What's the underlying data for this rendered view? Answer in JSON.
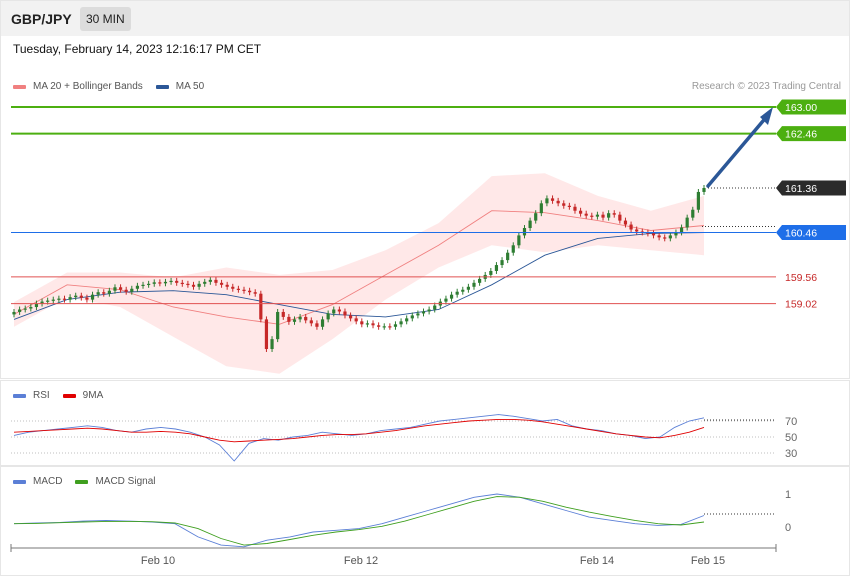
{
  "header": {
    "symbol": "GBP/JPY",
    "timeframe": "30 MIN"
  },
  "datetime": "Tuesday, February 14, 2023 12:16:17 PM CET",
  "credit": "Research © 2023 Trading Central",
  "legends": {
    "price": [
      {
        "name": "MA 20 + Bollinger Bands",
        "color": "#f08080"
      },
      {
        "name": "MA 50",
        "color": "#2b5797"
      }
    ],
    "rsi": [
      {
        "name": "RSI",
        "color": "#5b7fd6"
      },
      {
        "name": "9MA",
        "color": "#e00000"
      }
    ],
    "macd": [
      {
        "name": "MACD",
        "color": "#5b7fd6"
      },
      {
        "name": "MACD Signal",
        "color": "#3f9f1f"
      }
    ]
  },
  "colors": {
    "up": "#2e7d32",
    "down": "#c62828",
    "target": "#4caf10",
    "pivot": "#1e6ee8",
    "support": "#e05050",
    "current": "#2b2b2b",
    "arrow": "#2b5797"
  },
  "chart_data": [
    {
      "type": "candlestick",
      "title": "GBP/JPY",
      "ylim": [
        158.12,
        163.45
      ],
      "x_ticks": [
        "Feb 10",
        "Feb 12",
        "Feb 14",
        "Feb 15"
      ],
      "levels": [
        {
          "value": 163.0,
          "label": "163.00",
          "kind": "target"
        },
        {
          "value": 162.46,
          "label": "162.46",
          "kind": "target"
        },
        {
          "value": 161.36,
          "label": "161.36",
          "kind": "current"
        },
        {
          "value": 160.46,
          "label": "160.46",
          "kind": "pivot"
        },
        {
          "value": 159.56,
          "label": "159.56",
          "kind": "support"
        },
        {
          "value": 159.02,
          "label": "159.02",
          "kind": "support"
        }
      ],
      "close_approx": [
        158.85,
        158.9,
        158.92,
        158.95,
        159.02,
        159.06,
        159.08,
        159.1,
        159.12,
        159.1,
        159.15,
        159.18,
        159.14,
        159.1,
        159.2,
        159.25,
        159.22,
        159.28,
        159.35,
        159.3,
        159.26,
        159.32,
        159.38,
        159.4,
        159.42,
        159.45,
        159.43,
        159.46,
        159.48,
        159.44,
        159.42,
        159.4,
        159.36,
        159.42,
        159.46,
        159.5,
        159.44,
        159.4,
        159.36,
        159.32,
        159.3,
        159.28,
        159.25,
        159.22,
        158.7,
        158.1,
        158.3,
        158.85,
        158.75,
        158.65,
        158.7,
        158.75,
        158.68,
        158.62,
        158.55,
        158.7,
        158.82,
        158.9,
        158.86,
        158.78,
        158.72,
        158.66,
        158.6,
        158.62,
        158.58,
        158.55,
        158.56,
        158.55,
        158.6,
        158.66,
        158.72,
        158.78,
        158.82,
        158.86,
        158.9,
        158.98,
        159.06,
        159.12,
        159.2,
        159.26,
        159.3,
        159.36,
        159.44,
        159.52,
        159.6,
        159.68,
        159.8,
        159.9,
        160.05,
        160.2,
        160.4,
        160.55,
        160.7,
        160.85,
        161.05,
        161.15,
        161.1,
        161.05,
        161.0,
        160.98,
        160.9,
        160.84,
        160.8,
        160.78,
        160.82,
        160.76,
        160.85,
        160.82,
        160.7,
        160.62,
        160.52,
        160.48,
        160.46,
        160.44,
        160.4,
        160.36,
        160.34,
        160.4,
        160.46,
        160.56,
        160.76,
        160.92,
        161.28,
        161.36
      ],
      "ma20_approx": [
        158.8,
        159.4,
        159.3,
        158.95,
        158.75,
        158.6,
        159.0,
        159.6,
        160.2,
        160.9,
        160.86,
        160.7,
        160.5,
        160.6
      ],
      "ma50_approx": [
        158.7,
        159.1,
        159.25,
        159.28,
        159.2,
        159.0,
        158.8,
        158.75,
        158.9,
        159.4,
        160.0,
        160.34,
        160.44,
        160.46
      ]
    },
    {
      "type": "line",
      "title": "RSI",
      "y_ticks": [
        70,
        50,
        30
      ],
      "series": [
        {
          "name": "RSI",
          "values": [
            52,
            56,
            58,
            60,
            62,
            64,
            62,
            58,
            56,
            60,
            62,
            60,
            56,
            50,
            40,
            20,
            42,
            48,
            46,
            50,
            52,
            56,
            54,
            52,
            54,
            58,
            60,
            62,
            66,
            70,
            72,
            74,
            76,
            78,
            76,
            73,
            70,
            72,
            64,
            60,
            58,
            54,
            52,
            48,
            50,
            62,
            70,
            74
          ]
        },
        {
          "name": "9MA",
          "values": [
            56,
            57,
            58,
            59,
            60,
            61,
            60,
            58,
            56,
            56,
            57,
            56,
            54,
            50,
            46,
            44,
            45,
            46,
            47,
            48,
            50,
            52,
            53,
            53,
            54,
            56,
            58,
            61,
            64,
            66,
            68,
            70,
            71,
            72,
            72,
            71,
            69,
            66,
            63,
            60,
            57,
            54,
            52,
            50,
            49,
            52,
            56,
            62
          ]
        }
      ]
    },
    {
      "type": "line",
      "title": "MACD",
      "y_ticks": [
        1,
        0
      ],
      "series": [
        {
          "name": "MACD",
          "values": [
            0.1,
            0.12,
            0.14,
            0.18,
            0.2,
            0.18,
            0.15,
            0.1,
            -0.3,
            -0.55,
            -0.6,
            -0.4,
            -0.3,
            -0.15,
            -0.1,
            -0.05,
            0.1,
            0.3,
            0.5,
            0.7,
            0.9,
            1.0,
            0.9,
            0.7,
            0.5,
            0.3,
            0.2,
            0.1,
            0.05,
            0.08,
            0.35
          ]
        },
        {
          "name": "MACD Signal",
          "values": [
            0.1,
            0.11,
            0.13,
            0.15,
            0.17,
            0.17,
            0.16,
            0.12,
            -0.05,
            -0.35,
            -0.55,
            -0.5,
            -0.38,
            -0.25,
            -0.15,
            -0.08,
            0.02,
            0.18,
            0.38,
            0.58,
            0.78,
            0.92,
            0.9,
            0.78,
            0.6,
            0.45,
            0.32,
            0.2,
            0.1,
            0.06,
            0.15
          ]
        }
      ]
    }
  ]
}
